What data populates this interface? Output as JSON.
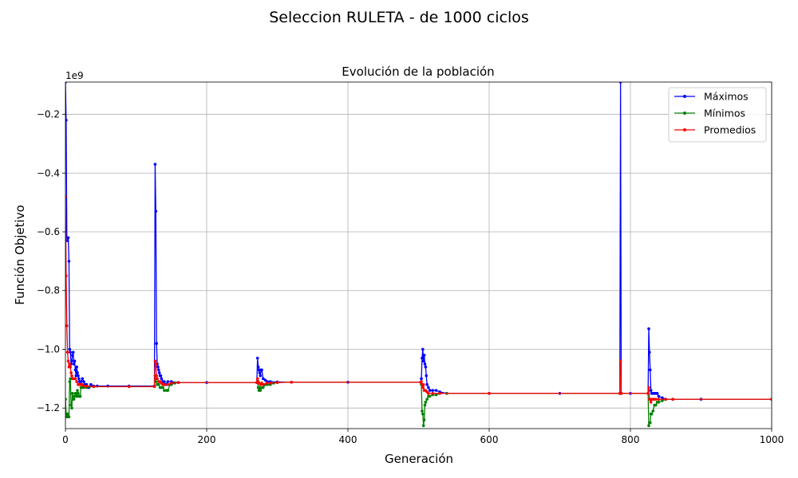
{
  "chart_data": {
    "type": "line",
    "suptitle": "Seleccion RULETA - de 1000 ciclos",
    "title": "Evolución de la población",
    "xlabel": "Generación",
    "ylabel": "Función Objetivo",
    "y_offset_label": "1e9",
    "xlim": [
      0,
      1000
    ],
    "ylim": [
      -1.27,
      -0.09
    ],
    "x_ticks": [
      0,
      200,
      400,
      600,
      800,
      1000
    ],
    "y_ticks": [
      -0.2,
      -0.4,
      -0.6,
      -0.8,
      -1.0,
      -1.2
    ],
    "x_tick_labels": [
      "0",
      "200",
      "400",
      "600",
      "800",
      "1000"
    ],
    "y_tick_labels": [
      "−0.2",
      "−0.4",
      "−0.6",
      "−0.8",
      "−1.0",
      "−1.2"
    ],
    "grid": true,
    "legend_position": "top-right",
    "series": [
      {
        "name": "Máximos",
        "color": "#0000ff",
        "points": [
          [
            0,
            -0.09
          ],
          [
            1,
            -0.22
          ],
          [
            2,
            -0.62
          ],
          [
            3,
            -0.63
          ],
          [
            4,
            -0.62
          ],
          [
            5,
            -0.7
          ],
          [
            6,
            -1.0
          ],
          [
            7,
            -1.01
          ],
          [
            8,
            -1.05
          ],
          [
            9,
            -1.04
          ],
          [
            10,
            -1.02
          ],
          [
            11,
            -1.01
          ],
          [
            12,
            -1.05
          ],
          [
            13,
            -1.04
          ],
          [
            14,
            -1.07
          ],
          [
            15,
            -1.09
          ],
          [
            16,
            -1.06
          ],
          [
            17,
            -1.08
          ],
          [
            18,
            -1.09
          ],
          [
            19,
            -1.1
          ],
          [
            20,
            -1.11
          ],
          [
            22,
            -1.11
          ],
          [
            24,
            -1.1
          ],
          [
            26,
            -1.11
          ],
          [
            28,
            -1.12
          ],
          [
            30,
            -1.12
          ],
          [
            33,
            -1.13
          ],
          [
            36,
            -1.12
          ],
          [
            40,
            -1.125
          ],
          [
            45,
            -1.125
          ],
          [
            60,
            -1.125
          ],
          [
            90,
            -1.125
          ],
          [
            126,
            -1.125
          ],
          [
            127,
            -0.37
          ],
          [
            128,
            -0.53
          ],
          [
            129,
            -0.98
          ],
          [
            130,
            -1.05
          ],
          [
            131,
            -1.06
          ],
          [
            132,
            -1.07
          ],
          [
            133,
            -1.08
          ],
          [
            134,
            -1.09
          ],
          [
            135,
            -1.09
          ],
          [
            136,
            -1.1
          ],
          [
            138,
            -1.11
          ],
          [
            140,
            -1.11
          ],
          [
            142,
            -1.12
          ],
          [
            145,
            -1.11
          ],
          [
            150,
            -1.11
          ],
          [
            160,
            -1.113
          ],
          [
            200,
            -1.113
          ],
          [
            271,
            -1.113
          ],
          [
            272,
            -1.03
          ],
          [
            273,
            -1.06
          ],
          [
            274,
            -1.07
          ],
          [
            275,
            -1.08
          ],
          [
            276,
            -1.09
          ],
          [
            277,
            -1.07
          ],
          [
            278,
            -1.07
          ],
          [
            280,
            -1.1
          ],
          [
            283,
            -1.105
          ],
          [
            286,
            -1.11
          ],
          [
            290,
            -1.11
          ],
          [
            300,
            -1.111
          ],
          [
            320,
            -1.112
          ],
          [
            400,
            -1.112
          ],
          [
            503,
            -1.112
          ],
          [
            504,
            -1.1
          ],
          [
            505,
            -1.03
          ],
          [
            506,
            -1.0
          ],
          [
            507,
            -1.04
          ],
          [
            508,
            -1.02
          ],
          [
            509,
            -1.05
          ],
          [
            510,
            -1.06
          ],
          [
            511,
            -1.09
          ],
          [
            512,
            -1.12
          ],
          [
            514,
            -1.13
          ],
          [
            516,
            -1.14
          ],
          [
            520,
            -1.14
          ],
          [
            525,
            -1.14
          ],
          [
            530,
            -1.145
          ],
          [
            540,
            -1.15
          ],
          [
            600,
            -1.15
          ],
          [
            700,
            -1.15
          ],
          [
            785,
            -1.15
          ],
          [
            786,
            -0.09
          ],
          [
            787,
            -1.15
          ],
          [
            800,
            -1.15
          ],
          [
            825,
            -1.15
          ],
          [
            826,
            -0.93
          ],
          [
            827,
            -1.01
          ],
          [
            828,
            -1.07
          ],
          [
            829,
            -1.14
          ],
          [
            830,
            -1.15
          ],
          [
            832,
            -1.15
          ],
          [
            834,
            -1.15
          ],
          [
            836,
            -1.15
          ],
          [
            838,
            -1.15
          ],
          [
            840,
            -1.16
          ],
          [
            845,
            -1.165
          ],
          [
            850,
            -1.17
          ],
          [
            860,
            -1.17
          ],
          [
            900,
            -1.17
          ],
          [
            1000,
            -1.17
          ]
        ]
      },
      {
        "name": "Mínimos",
        "color": "#008000",
        "points": [
          [
            0,
            -1.17
          ],
          [
            1,
            -1.22
          ],
          [
            2,
            -1.23
          ],
          [
            3,
            -1.22
          ],
          [
            4,
            -1.23
          ],
          [
            5,
            -1.23
          ],
          [
            6,
            -1.11
          ],
          [
            7,
            -1.1
          ],
          [
            8,
            -1.19
          ],
          [
            9,
            -1.2
          ],
          [
            10,
            -1.15
          ],
          [
            11,
            -1.17
          ],
          [
            12,
            -1.17
          ],
          [
            13,
            -1.16
          ],
          [
            14,
            -1.15
          ],
          [
            15,
            -1.15
          ],
          [
            16,
            -1.16
          ],
          [
            17,
            -1.14
          ],
          [
            18,
            -1.15
          ],
          [
            19,
            -1.16
          ],
          [
            20,
            -1.16
          ],
          [
            21,
            -1.16
          ],
          [
            22,
            -1.13
          ],
          [
            24,
            -1.13
          ],
          [
            26,
            -1.13
          ],
          [
            30,
            -1.13
          ],
          [
            40,
            -1.127
          ],
          [
            90,
            -1.127
          ],
          [
            126,
            -1.127
          ],
          [
            127,
            -1.09
          ],
          [
            128,
            -1.11
          ],
          [
            130,
            -1.12
          ],
          [
            132,
            -1.12
          ],
          [
            134,
            -1.13
          ],
          [
            136,
            -1.13
          ],
          [
            138,
            -1.13
          ],
          [
            140,
            -1.14
          ],
          [
            143,
            -1.14
          ],
          [
            145,
            -1.14
          ],
          [
            148,
            -1.12
          ],
          [
            150,
            -1.12
          ],
          [
            155,
            -1.115
          ],
          [
            160,
            -1.113
          ],
          [
            271,
            -1.113
          ],
          [
            272,
            -1.11
          ],
          [
            273,
            -1.13
          ],
          [
            274,
            -1.14
          ],
          [
            275,
            -1.13
          ],
          [
            276,
            -1.14
          ],
          [
            278,
            -1.13
          ],
          [
            280,
            -1.13
          ],
          [
            283,
            -1.12
          ],
          [
            286,
            -1.12
          ],
          [
            290,
            -1.12
          ],
          [
            295,
            -1.115
          ],
          [
            300,
            -1.113
          ],
          [
            320,
            -1.112
          ],
          [
            503,
            -1.112
          ],
          [
            504,
            -1.12
          ],
          [
            505,
            -1.21
          ],
          [
            506,
            -1.22
          ],
          [
            507,
            -1.26
          ],
          [
            508,
            -1.24
          ],
          [
            509,
            -1.19
          ],
          [
            510,
            -1.18
          ],
          [
            512,
            -1.17
          ],
          [
            514,
            -1.16
          ],
          [
            516,
            -1.16
          ],
          [
            520,
            -1.155
          ],
          [
            525,
            -1.155
          ],
          [
            530,
            -1.15
          ],
          [
            540,
            -1.15
          ],
          [
            600,
            -1.15
          ],
          [
            785,
            -1.15
          ],
          [
            786,
            -1.15
          ],
          [
            787,
            -1.15
          ],
          [
            825,
            -1.15
          ],
          [
            826,
            -1.26
          ],
          [
            827,
            -1.25
          ],
          [
            828,
            -1.25
          ],
          [
            829,
            -1.22
          ],
          [
            830,
            -1.22
          ],
          [
            832,
            -1.21
          ],
          [
            834,
            -1.19
          ],
          [
            836,
            -1.19
          ],
          [
            838,
            -1.18
          ],
          [
            840,
            -1.18
          ],
          [
            845,
            -1.175
          ],
          [
            850,
            -1.17
          ],
          [
            860,
            -1.17
          ],
          [
            1000,
            -1.17
          ]
        ]
      },
      {
        "name": "Promedios",
        "color": "#ff0000",
        "points": [
          [
            0,
            -0.48
          ],
          [
            1,
            -0.75
          ],
          [
            2,
            -0.92
          ],
          [
            3,
            -1.01
          ],
          [
            4,
            -1.04
          ],
          [
            5,
            -1.06
          ],
          [
            6,
            -1.05
          ],
          [
            7,
            -1.06
          ],
          [
            8,
            -1.08
          ],
          [
            9,
            -1.09
          ],
          [
            10,
            -1.1
          ],
          [
            12,
            -1.1
          ],
          [
            14,
            -1.1
          ],
          [
            16,
            -1.11
          ],
          [
            18,
            -1.12
          ],
          [
            20,
            -1.12
          ],
          [
            22,
            -1.12
          ],
          [
            24,
            -1.12
          ],
          [
            26,
            -1.125
          ],
          [
            30,
            -1.125
          ],
          [
            40,
            -1.127
          ],
          [
            90,
            -1.127
          ],
          [
            126,
            -1.127
          ],
          [
            127,
            -1.04
          ],
          [
            128,
            -1.05
          ],
          [
            129,
            -1.09
          ],
          [
            130,
            -1.1
          ],
          [
            132,
            -1.11
          ],
          [
            134,
            -1.11
          ],
          [
            136,
            -1.115
          ],
          [
            138,
            -1.12
          ],
          [
            140,
            -1.12
          ],
          [
            145,
            -1.12
          ],
          [
            150,
            -1.115
          ],
          [
            160,
            -1.113
          ],
          [
            271,
            -1.113
          ],
          [
            272,
            -1.1
          ],
          [
            273,
            -1.11
          ],
          [
            274,
            -1.115
          ],
          [
            276,
            -1.12
          ],
          [
            278,
            -1.115
          ],
          [
            280,
            -1.12
          ],
          [
            285,
            -1.115
          ],
          [
            290,
            -1.115
          ],
          [
            300,
            -1.113
          ],
          [
            320,
            -1.112
          ],
          [
            503,
            -1.112
          ],
          [
            504,
            -1.11
          ],
          [
            505,
            -1.12
          ],
          [
            506,
            -1.13
          ],
          [
            507,
            -1.12
          ],
          [
            508,
            -1.14
          ],
          [
            510,
            -1.14
          ],
          [
            512,
            -1.145
          ],
          [
            514,
            -1.15
          ],
          [
            520,
            -1.15
          ],
          [
            530,
            -1.15
          ],
          [
            600,
            -1.15
          ],
          [
            785,
            -1.15
          ],
          [
            786,
            -1.04
          ],
          [
            787,
            -1.15
          ],
          [
            825,
            -1.15
          ],
          [
            826,
            -1.13
          ],
          [
            827,
            -1.17
          ],
          [
            828,
            -1.17
          ],
          [
            829,
            -1.18
          ],
          [
            830,
            -1.17
          ],
          [
            832,
            -1.17
          ],
          [
            834,
            -1.17
          ],
          [
            836,
            -1.17
          ],
          [
            840,
            -1.17
          ],
          [
            850,
            -1.17
          ],
          [
            860,
            -1.17
          ],
          [
            1000,
            -1.17
          ]
        ]
      }
    ]
  }
}
